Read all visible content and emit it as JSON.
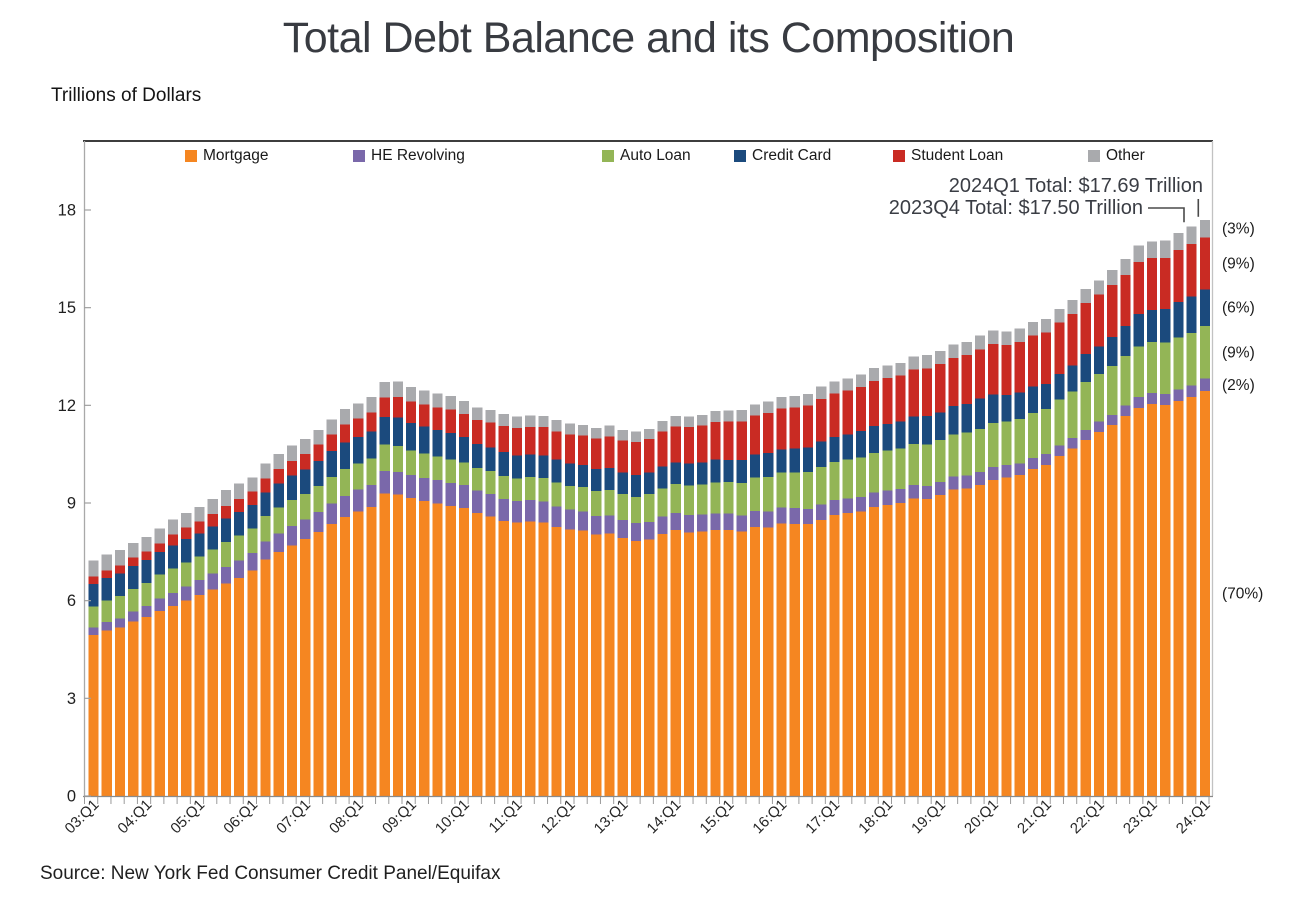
{
  "chart_data": {
    "type": "bar",
    "variant": "stacked",
    "title": "Total Debt Balance and its Composition",
    "units_label": "Trillions of Dollars",
    "source": "Source: New York Fed Consumer Credit Panel/Equifax",
    "ylim": [
      0,
      18
    ],
    "y_ticks": [
      0,
      3,
      6,
      9,
      12,
      15,
      18
    ],
    "y_tick_labels": [
      "0",
      "3",
      "6",
      "9",
      "12",
      "15",
      "18"
    ],
    "x_ticks_every": 4,
    "x_tick_labels": [
      "03:Q1",
      "04:Q1",
      "05:Q1",
      "06:Q1",
      "07:Q1",
      "08:Q1",
      "09:Q1",
      "10:Q1",
      "11:Q1",
      "12:Q1",
      "13:Q1",
      "14:Q1",
      "15:Q1",
      "16:Q1",
      "17:Q1",
      "18:Q1",
      "19:Q1",
      "20:Q1",
      "21:Q1",
      "22:Q1",
      "23:Q1",
      "24:Q1"
    ],
    "grid": "off",
    "legend_position": "top-inside",
    "annotations": [
      {
        "label": "2024Q1 Total: $17.69 Trillion",
        "target_quarter": "24:Q1"
      },
      {
        "label": "2023Q4 Total: $17.50 Trillion",
        "target_quarter": "23:Q4"
      }
    ],
    "series": [
      {
        "name": "Mortgage",
        "color": "#F58621",
        "share_label": "(70%)",
        "values": [
          4.94,
          5.08,
          5.18,
          5.36,
          5.5,
          5.69,
          5.84,
          6.0,
          6.17,
          6.34,
          6.52,
          6.7,
          6.92,
          7.26,
          7.5,
          7.7,
          7.89,
          8.11,
          8.36,
          8.57,
          8.74,
          8.88,
          9.29,
          9.26,
          9.15,
          9.06,
          8.99,
          8.91,
          8.84,
          8.69,
          8.59,
          8.45,
          8.4,
          8.43,
          8.4,
          8.27,
          8.19,
          8.15,
          8.03,
          8.06,
          7.93,
          7.84,
          7.88,
          8.05,
          8.17,
          8.1,
          8.13,
          8.17,
          8.17,
          8.12,
          8.26,
          8.25,
          8.37,
          8.36,
          8.35,
          8.48,
          8.63,
          8.69,
          8.74,
          8.88,
          8.94,
          9.0,
          9.14,
          9.12,
          9.24,
          9.41,
          9.44,
          9.56,
          9.71,
          9.78,
          9.86,
          10.04,
          10.16,
          10.44,
          10.67,
          10.93,
          11.18,
          11.39,
          11.67,
          11.92,
          12.04,
          12.01,
          12.14,
          12.25,
          12.44
        ]
      },
      {
        "name": "HE Revolving",
        "color": "#7A68AA",
        "share_label": "(2%)",
        "values": [
          0.24,
          0.26,
          0.27,
          0.3,
          0.33,
          0.37,
          0.4,
          0.44,
          0.46,
          0.49,
          0.51,
          0.53,
          0.54,
          0.56,
          0.57,
          0.6,
          0.61,
          0.62,
          0.63,
          0.65,
          0.67,
          0.68,
          0.69,
          0.7,
          0.71,
          0.71,
          0.71,
          0.71,
          0.71,
          0.69,
          0.68,
          0.67,
          0.66,
          0.66,
          0.65,
          0.63,
          0.61,
          0.59,
          0.57,
          0.56,
          0.55,
          0.54,
          0.54,
          0.53,
          0.53,
          0.53,
          0.51,
          0.51,
          0.51,
          0.5,
          0.49,
          0.49,
          0.49,
          0.48,
          0.47,
          0.47,
          0.46,
          0.45,
          0.45,
          0.44,
          0.44,
          0.43,
          0.42,
          0.41,
          0.41,
          0.4,
          0.4,
          0.39,
          0.39,
          0.38,
          0.36,
          0.35,
          0.34,
          0.32,
          0.32,
          0.32,
          0.32,
          0.32,
          0.32,
          0.34,
          0.34,
          0.34,
          0.35,
          0.36,
          0.38
        ]
      },
      {
        "name": "Auto Loan",
        "color": "#93B556",
        "share_label": "(9%)",
        "values": [
          0.64,
          0.66,
          0.69,
          0.7,
          0.72,
          0.74,
          0.75,
          0.73,
          0.73,
          0.74,
          0.77,
          0.77,
          0.76,
          0.78,
          0.79,
          0.79,
          0.78,
          0.79,
          0.81,
          0.82,
          0.81,
          0.81,
          0.81,
          0.79,
          0.76,
          0.75,
          0.73,
          0.72,
          0.7,
          0.7,
          0.71,
          0.71,
          0.7,
          0.71,
          0.72,
          0.73,
          0.73,
          0.75,
          0.77,
          0.78,
          0.79,
          0.81,
          0.85,
          0.86,
          0.88,
          0.91,
          0.93,
          0.95,
          0.96,
          1.0,
          1.03,
          1.06,
          1.07,
          1.1,
          1.14,
          1.16,
          1.17,
          1.19,
          1.21,
          1.22,
          1.23,
          1.24,
          1.26,
          1.27,
          1.28,
          1.3,
          1.32,
          1.33,
          1.35,
          1.34,
          1.36,
          1.37,
          1.38,
          1.42,
          1.44,
          1.46,
          1.47,
          1.5,
          1.52,
          1.55,
          1.56,
          1.58,
          1.6,
          1.61,
          1.62
        ]
      },
      {
        "name": "Credit Card",
        "color": "#1B4A7D",
        "share_label": "(6%)",
        "values": [
          0.69,
          0.69,
          0.69,
          0.71,
          0.7,
          0.7,
          0.71,
          0.72,
          0.71,
          0.71,
          0.72,
          0.73,
          0.72,
          0.73,
          0.74,
          0.75,
          0.75,
          0.77,
          0.79,
          0.82,
          0.81,
          0.83,
          0.85,
          0.87,
          0.84,
          0.83,
          0.81,
          0.81,
          0.77,
          0.74,
          0.73,
          0.73,
          0.7,
          0.69,
          0.69,
          0.7,
          0.68,
          0.67,
          0.67,
          0.68,
          0.66,
          0.67,
          0.67,
          0.68,
          0.66,
          0.67,
          0.68,
          0.7,
          0.68,
          0.7,
          0.71,
          0.73,
          0.71,
          0.73,
          0.75,
          0.78,
          0.76,
          0.78,
          0.81,
          0.83,
          0.82,
          0.83,
          0.84,
          0.87,
          0.85,
          0.87,
          0.88,
          0.93,
          0.89,
          0.82,
          0.81,
          0.82,
          0.77,
          0.79,
          0.8,
          0.86,
          0.84,
          0.89,
          0.93,
          0.99,
          0.99,
          1.03,
          1.08,
          1.13,
          1.12
        ]
      },
      {
        "name": "Student Loan",
        "color": "#C92B23",
        "share_label": "(9%)",
        "values": [
          0.24,
          0.24,
          0.25,
          0.25,
          0.26,
          0.26,
          0.33,
          0.35,
          0.36,
          0.38,
          0.39,
          0.39,
          0.41,
          0.43,
          0.44,
          0.45,
          0.48,
          0.5,
          0.52,
          0.55,
          0.56,
          0.58,
          0.6,
          0.64,
          0.66,
          0.68,
          0.69,
          0.72,
          0.71,
          0.73,
          0.76,
          0.81,
          0.84,
          0.85,
          0.87,
          0.87,
          0.9,
          0.91,
          0.94,
          0.97,
          0.99,
          1.01,
          1.03,
          1.08,
          1.11,
          1.12,
          1.13,
          1.16,
          1.19,
          1.19,
          1.2,
          1.23,
          1.26,
          1.26,
          1.28,
          1.31,
          1.34,
          1.34,
          1.36,
          1.38,
          1.41,
          1.41,
          1.44,
          1.46,
          1.49,
          1.48,
          1.5,
          1.51,
          1.54,
          1.54,
          1.55,
          1.56,
          1.58,
          1.57,
          1.58,
          1.58,
          1.59,
          1.59,
          1.57,
          1.6,
          1.6,
          1.57,
          1.6,
          1.6,
          1.6
        ]
      },
      {
        "name": "Other",
        "color": "#A9AAAD",
        "share_label": "(3%)",
        "values": [
          0.48,
          0.49,
          0.48,
          0.45,
          0.45,
          0.46,
          0.47,
          0.45,
          0.45,
          0.47,
          0.49,
          0.48,
          0.44,
          0.45,
          0.46,
          0.47,
          0.46,
          0.46,
          0.46,
          0.48,
          0.46,
          0.47,
          0.47,
          0.47,
          0.44,
          0.43,
          0.43,
          0.42,
          0.41,
          0.39,
          0.38,
          0.36,
          0.36,
          0.35,
          0.35,
          0.35,
          0.33,
          0.33,
          0.33,
          0.33,
          0.32,
          0.32,
          0.31,
          0.32,
          0.32,
          0.32,
          0.32,
          0.34,
          0.33,
          0.34,
          0.34,
          0.36,
          0.35,
          0.36,
          0.36,
          0.38,
          0.37,
          0.38,
          0.38,
          0.39,
          0.39,
          0.39,
          0.4,
          0.41,
          0.4,
          0.41,
          0.41,
          0.43,
          0.42,
          0.41,
          0.42,
          0.42,
          0.42,
          0.42,
          0.43,
          0.43,
          0.43,
          0.47,
          0.49,
          0.51,
          0.51,
          0.53,
          0.53,
          0.55,
          0.54
        ]
      }
    ]
  }
}
